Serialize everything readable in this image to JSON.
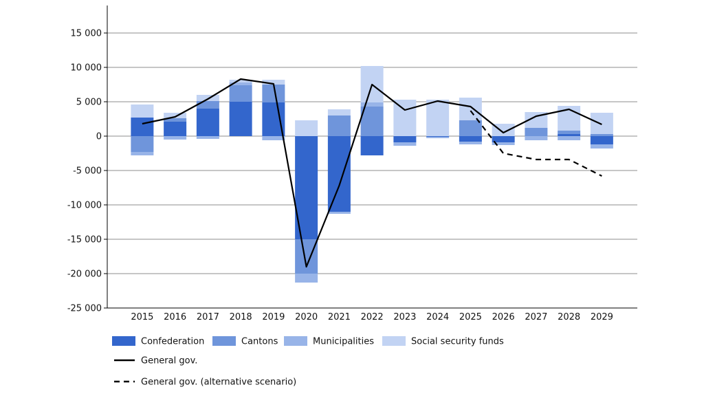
{
  "chart_data": {
    "type": "bar",
    "stacked": true,
    "title": "",
    "xlabel": "",
    "ylabel": "",
    "ylim": [
      -25000,
      19000
    ],
    "y_ticks": [
      15000,
      10000,
      5000,
      0,
      -5000,
      -10000,
      -15000,
      -20000,
      -25000
    ],
    "y_tick_labels": [
      "15 000",
      "10 000",
      "5 000",
      "0",
      "-5 000",
      "-10 000",
      "-15 000",
      "-20 000",
      "-25 000"
    ],
    "grid": "horizontal",
    "legend_position": "bottom",
    "categories": [
      "2015",
      "2016",
      "2017",
      "2018",
      "2019",
      "2020",
      "2021",
      "2022",
      "2023",
      "2024",
      "2025",
      "2026",
      "2027",
      "2028",
      "2029"
    ],
    "series": [
      {
        "name": "Confederation",
        "color": "#3366cc",
        "values": [
          2700,
          2100,
          4000,
          5000,
          4900,
          -15000,
          -11000,
          -2800,
          -900,
          -100,
          -800,
          -900,
          0,
          300,
          -1200
        ]
      },
      {
        "name": "Cantons",
        "color": "#6f95db",
        "values": [
          -2300,
          500,
          1100,
          2400,
          2600,
          -5000,
          3000,
          4300,
          0,
          0,
          2300,
          0,
          1200,
          500,
          300
        ]
      },
      {
        "name": "Municipalities",
        "color": "#98b4e8",
        "values": [
          -500,
          -500,
          -400,
          400,
          -600,
          -1300,
          -300,
          600,
          -500,
          -200,
          -400,
          -400,
          -600,
          -600,
          -600
        ]
      },
      {
        "name": "Social security funds",
        "color": "#c2d3f3",
        "values": [
          1900,
          800,
          900,
          400,
          700,
          2300,
          900,
          5300,
          5300,
          5300,
          3300,
          1800,
          2300,
          3600,
          3100
        ]
      }
    ],
    "lines": [
      {
        "name": "General gov.",
        "style": "solid",
        "color": "#000000",
        "values": [
          1800,
          2800,
          5400,
          8300,
          7600,
          -19000,
          -7200,
          7500,
          3800,
          5100,
          4300,
          500,
          2900,
          3900,
          1700
        ]
      },
      {
        "name": "General gov. (alternative scenario)",
        "style": "dashed",
        "color": "#000000",
        "values": [
          null,
          null,
          null,
          null,
          null,
          null,
          null,
          null,
          null,
          null,
          3700,
          -2500,
          -3400,
          -3400,
          -5800
        ]
      }
    ]
  }
}
